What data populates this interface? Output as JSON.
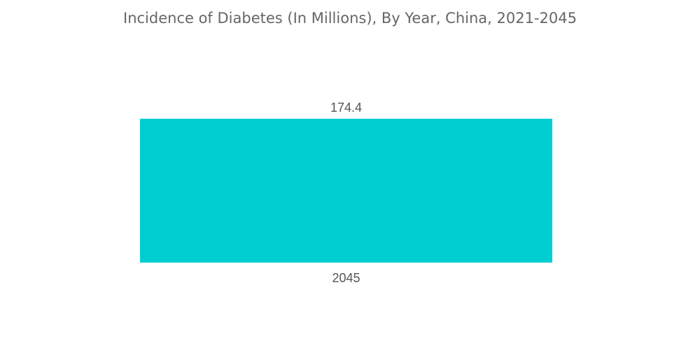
{
  "title": "Incidence of Diabetes (In Millions), By Year, China, 2021-2045",
  "colors": {
    "bar": "#00cdd0",
    "text": "#555555",
    "title": "#666666",
    "background": "#ffffff"
  },
  "chart_data": {
    "type": "bar",
    "title": "Incidence of Diabetes (In Millions), By Year, China, 2021-2045",
    "categories": [
      "2045"
    ],
    "values": [
      174.4
    ],
    "value_labels": [
      "174.4"
    ],
    "xlabel": "",
    "ylabel": "",
    "ylim": [
      0,
      174.4
    ],
    "grid": false,
    "legend": "none"
  }
}
